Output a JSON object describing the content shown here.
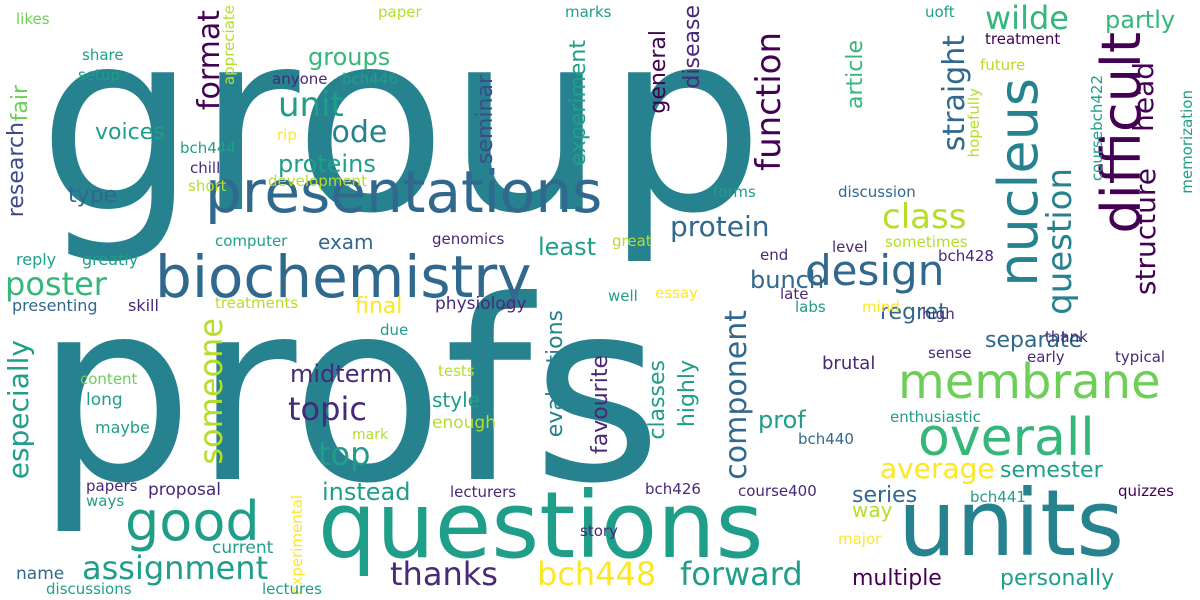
{
  "palette": {
    "dark_purple": "#440154",
    "indigo": "#482878",
    "blue": "#3e4a89",
    "slate": "#31688e",
    "teal_blue": "#26828e",
    "teal": "#1f9e89",
    "green_teal": "#35b779",
    "green": "#6ece58",
    "lime": "#b5de2b",
    "yellow": "#fde725"
  },
  "words": [
    "group",
    "profs",
    "questions",
    "units",
    "presentations",
    "biochemistry",
    "nucleus",
    "difficult",
    "membrane",
    "overall",
    "question",
    "design",
    "good",
    "function",
    "structure",
    "head",
    "unit",
    "code",
    "wilde",
    "partly",
    "format",
    "straight",
    "poster",
    "assignment",
    "thanks",
    "bch448",
    "forward",
    "multiple",
    "personally",
    "average",
    "semester",
    "series",
    "someone",
    "topic",
    "top",
    "midterm",
    "especially",
    "class",
    "protein",
    "proteins",
    "exam",
    "least",
    "bunch",
    "groups",
    "voices",
    "type",
    "fair",
    "research",
    "reply",
    "greatly",
    "presenting",
    "skill",
    "treatments",
    "final",
    "physiology",
    "regret",
    "separate",
    "way",
    "instead",
    "style",
    "enough",
    "mark",
    "experiment",
    "seminar",
    "general",
    "disease",
    "article",
    "evaluations",
    "favourite",
    "classes",
    "highly",
    "component",
    "prof",
    "bch440",
    "late",
    "labs",
    "mind",
    "high",
    "sense",
    "early",
    "typical",
    "brutal",
    "thank",
    "course400",
    "bch441",
    "quizzes",
    "bch426",
    "lecturers",
    "story",
    "major",
    "proposal",
    "papers",
    "ways",
    "current",
    "experimental",
    "name",
    "discussions",
    "lectures",
    "content",
    "long",
    "maybe",
    "tests",
    "due",
    "essay",
    "well",
    "end",
    "level",
    "sometimes",
    "bch428",
    "computer",
    "genomics",
    "great",
    "discussion",
    "forms",
    "development",
    "short",
    "chill",
    "bch444",
    "rip",
    "anyone",
    "bch446",
    "share",
    "setup",
    "appreciate",
    "likes",
    "paper",
    "marks",
    "uoft",
    "treatment",
    "future",
    "hopefully",
    "coursebch422",
    "memorization",
    "enthusiastic",
    "development"
  ]
}
